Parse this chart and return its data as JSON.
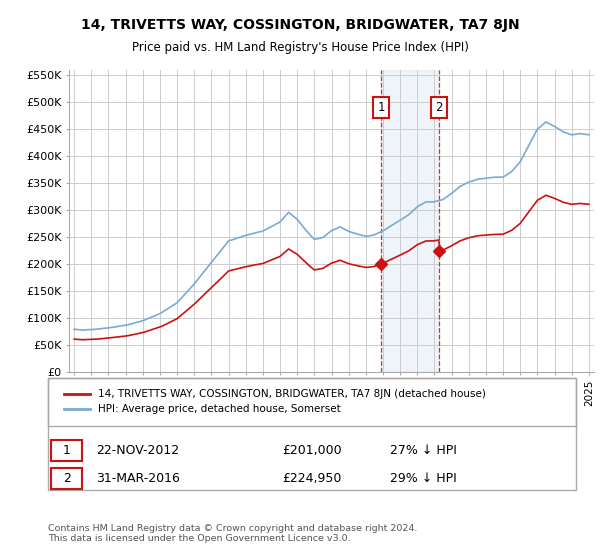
{
  "title": "14, TRIVETTS WAY, COSSINGTON, BRIDGWATER, TA7 8JN",
  "subtitle": "Price paid vs. HM Land Registry's House Price Index (HPI)",
  "legend_line1": "14, TRIVETTS WAY, COSSINGTON, BRIDGWATER, TA7 8JN (detached house)",
  "legend_line2": "HPI: Average price, detached house, Somerset",
  "ann1_num": "1",
  "ann1_date": "22-NOV-2012",
  "ann1_price": "£201,000",
  "ann1_pct": "27% ↓ HPI",
  "ann2_num": "2",
  "ann2_date": "31-MAR-2016",
  "ann2_price": "£224,950",
  "ann2_pct": "29% ↓ HPI",
  "footer": "Contains HM Land Registry data © Crown copyright and database right 2024.\nThis data is licensed under the Open Government Licence v3.0.",
  "hpi_color": "#7aaad4",
  "sale_color": "#cc1111",
  "background_color": "#ffffff",
  "grid_color": "#cccccc",
  "sale1_x": 2012.9,
  "sale1_y": 201000,
  "sale2_x": 2016.25,
  "sale2_y": 224950,
  "ylim": [
    0,
    560000
  ],
  "xlim": [
    1994.7,
    2025.3
  ]
}
